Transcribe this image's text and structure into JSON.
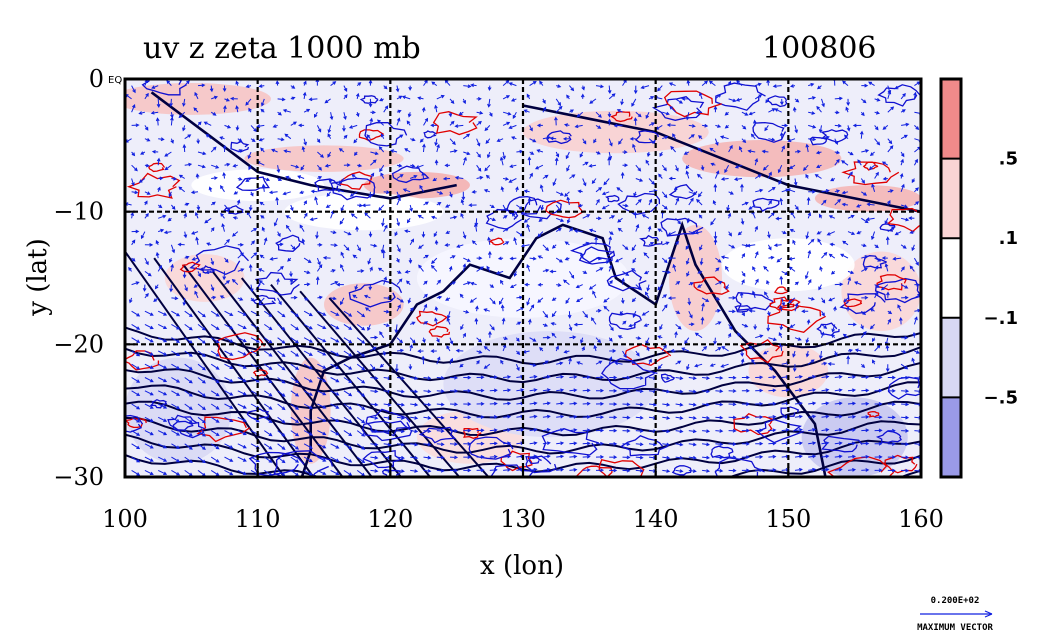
{
  "chart_data": {
    "type": "contour-vector-map",
    "title_left": "uv z zeta 1000 mb",
    "title_right": "100806",
    "xlabel": "x (lon)",
    "ylabel": "y (lat)",
    "xlim": [
      100,
      160
    ],
    "ylim": [
      -30,
      0
    ],
    "x_ticks": [
      100,
      110,
      120,
      130,
      140,
      150,
      160
    ],
    "x_tick_labels": [
      "100",
      "110",
      "120",
      "130",
      "140",
      "150",
      "160"
    ],
    "y_ticks": [
      0,
      -10,
      -20,
      -30
    ],
    "y_tick_labels": [
      "0",
      "−10",
      "−20",
      "−30"
    ],
    "y_zero_suffix": "EQ",
    "grid": true,
    "grid_lon": [
      110,
      120,
      130,
      140,
      150
    ],
    "grid_lat": [
      -10,
      -20
    ],
    "colorbar": {
      "levels": [
        ".5",
        ".1",
        "−.1",
        "−.5"
      ],
      "colors": [
        "#f08a8a",
        "#fad4d4",
        "#ffffff",
        "#d8d8f4",
        "#9a9ae8"
      ]
    },
    "vector_key": {
      "value": "0.200E+02",
      "label": "MAXIMUM VECTOR"
    },
    "colors": {
      "positive_contour": "#e00000",
      "negative_contour": "#1010d0",
      "height_contour": "#000040",
      "vectors": "#1020e0"
    }
  }
}
